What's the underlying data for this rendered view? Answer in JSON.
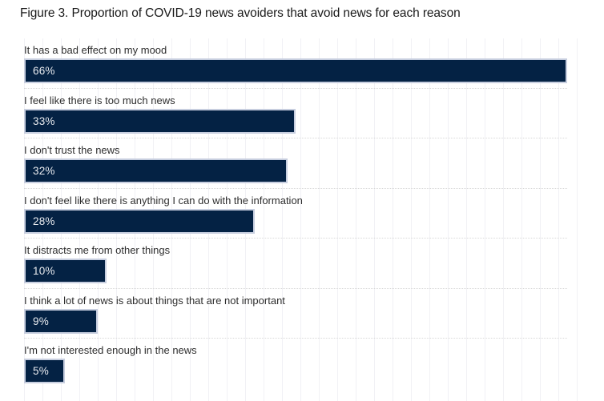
{
  "chart_data": {
    "type": "bar",
    "orientation": "horizontal",
    "title": "Figure 3. Proportion of COVID-19 news avoiders that avoid news for each reason",
    "categories": [
      "It has a bad effect on my mood",
      "I feel like there is too much news",
      "I don't trust the news",
      "I don't feel like there is anything I can do with the information",
      "It distracts me from other things",
      "I think a lot of news is about things that are not important",
      "I'm not interested enough in the news"
    ],
    "values": [
      66,
      33,
      32,
      28,
      10,
      9,
      5
    ],
    "labels": [
      "66%",
      "33%",
      "32%",
      "28%",
      "10%",
      "9%",
      "5%"
    ],
    "xlabel": "",
    "ylabel": "",
    "xlim": [
      0,
      66
    ],
    "grid": "faint-vertical-gridlines",
    "legend": "none",
    "value_label_position": "inside-left",
    "colors": {
      "bar_fill": "#042244",
      "bar_border": "#c7cedf",
      "value_label": "#e9ebef",
      "category_label": "#2e2e2e",
      "title": "#1a1a1a",
      "row_separator": "#d8d8d8",
      "gridline": "#f1f1f5",
      "background": "#ffffff"
    }
  }
}
